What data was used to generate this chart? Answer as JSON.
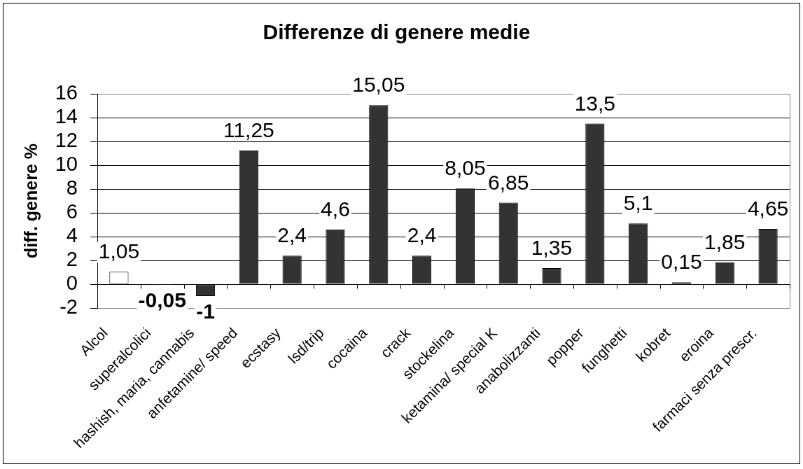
{
  "chart_data": {
    "type": "bar",
    "title": "Differenze di genere medie",
    "ylabel": "diff. genere %",
    "categories": [
      "Alcol",
      "superalcolici",
      "hashish, maria, cannabis",
      "anfetamine/ speed",
      "ecstasy",
      "lsd/trip",
      "cocaina",
      "crack",
      "stockelina",
      "ketamina/ special K",
      "anabolizzanti",
      "popper",
      "funghetti",
      "kobret",
      "eroina",
      "farmaci senza prescr."
    ],
    "values": [
      1.05,
      -0.05,
      -1,
      11.25,
      2.4,
      4.6,
      15.05,
      2.4,
      8.05,
      6.85,
      1.35,
      13.5,
      5.1,
      0.15,
      1.85,
      4.65
    ],
    "colors": [
      "#ffffff",
      "#333333",
      "#333333",
      "#333333",
      "#333333",
      "#333333",
      "#333333",
      "#333333",
      "#333333",
      "#333333",
      "#333333",
      "#333333",
      "#333333",
      "#333333",
      "#333333",
      "#333333"
    ],
    "value_labels": [
      "1,05",
      "-0,05",
      "-1",
      "11,25",
      "2,4",
      "4,6",
      "15,05",
      "2,4",
      "8,05",
      "6,85",
      "1,35",
      "13,5",
      "5,1",
      "0,15",
      "1,85",
      "4,65"
    ],
    "ylim": [
      -2,
      16
    ],
    "yticks": [
      -2,
      0,
      2,
      4,
      6,
      8,
      10,
      12,
      14,
      16
    ],
    "grid": "y"
  }
}
